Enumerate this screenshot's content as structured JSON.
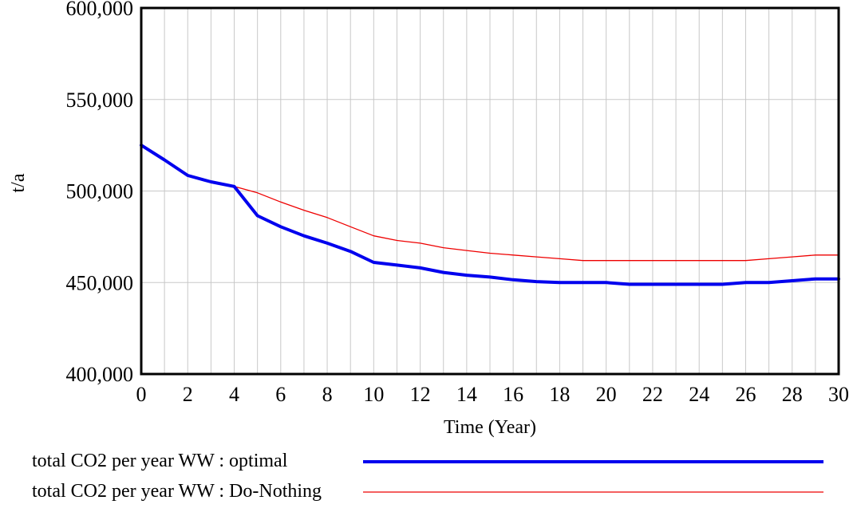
{
  "chart_data": {
    "type": "line",
    "title": "",
    "xlabel": "Time (Year)",
    "ylabel": "t/a",
    "xlim": [
      0,
      30
    ],
    "ylim": [
      400000,
      600000
    ],
    "x_ticks": [
      "0",
      "2",
      "4",
      "6",
      "8",
      "10",
      "12",
      "14",
      "16",
      "18",
      "20",
      "22",
      "24",
      "26",
      "28",
      "30"
    ],
    "y_ticks": [
      "400,000",
      "450,000",
      "500,000",
      "550,000",
      "600,000"
    ],
    "grid": true,
    "legend_position": "bottom",
    "x": [
      0,
      1,
      2,
      3,
      4,
      5,
      6,
      7,
      8,
      9,
      10,
      11,
      12,
      13,
      14,
      15,
      16,
      17,
      18,
      19,
      20,
      21,
      22,
      23,
      24,
      25,
      26,
      27,
      28,
      29,
      30
    ],
    "series": [
      {
        "name": "total CO2 per year WW : optimal",
        "color": "#0000ee",
        "values": [
          525000,
          517000,
          508500,
          505000,
          502500,
          486500,
          480500,
          475500,
          471500,
          467000,
          461000,
          459500,
          458000,
          455500,
          454000,
          453000,
          451500,
          450500,
          450000,
          450000,
          450000,
          449000,
          449000,
          449000,
          449000,
          449000,
          450000,
          450000,
          451000,
          452000,
          452000
        ]
      },
      {
        "name": "total CO2 per year WW : Do-Nothing",
        "color": "#ee0000",
        "values": [
          525000,
          517000,
          508500,
          505000,
          502500,
          499000,
          494000,
          489500,
          485500,
          480500,
          475500,
          473000,
          471500,
          469000,
          467500,
          466000,
          465000,
          464000,
          463000,
          462000,
          462000,
          462000,
          462000,
          462000,
          462000,
          462000,
          462000,
          463000,
          464000,
          465000,
          465000
        ]
      }
    ]
  }
}
